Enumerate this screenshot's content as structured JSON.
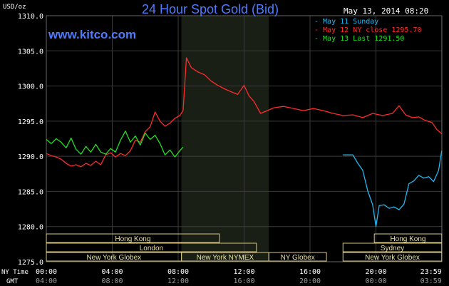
{
  "chart_data": {
    "type": "line",
    "title": "24 Hour Spot Gold (Bid)",
    "date_label": "May 13, 2014 08:20",
    "unit_label": "USD/oz",
    "brand": "www.kitco.com",
    "ylim": [
      1275.0,
      1310.0
    ],
    "y_ticks": [
      "1275.0",
      "1280.0",
      "1285.0",
      "1290.0",
      "1295.0",
      "1300.0",
      "1305.0",
      "1310.0"
    ],
    "x_ticks_ny": [
      "00:00",
      "04:00",
      "08:00",
      "12:00",
      "16:00",
      "20:00",
      "23:59"
    ],
    "x_ticks_gmt": [
      "04:00",
      "08:00",
      "12:00",
      "16:00",
      "20:00",
      "00:00",
      "03:59"
    ],
    "x_axis_labels": {
      "ny": "NY Time",
      "gmt": "GMT"
    },
    "grid": true,
    "legend": [
      {
        "text": "May 11 Sunday",
        "color": "#22b8f0"
      },
      {
        "text": "May 12 NY close 1295.70",
        "color": "#ff2a2a"
      },
      {
        "text": "May 13 Last 1291.50",
        "color": "#20e020"
      }
    ],
    "sessions": [
      {
        "name": "Hong Kong",
        "start": 0.0,
        "end": 10.5,
        "row": 0
      },
      {
        "name": "London",
        "start": 0.0,
        "end": 12.75,
        "row": 1
      },
      {
        "name": "New York Globex",
        "start": 0.0,
        "end": 8.2,
        "row": 2
      },
      {
        "name": "New York NYMEX",
        "start": 8.2,
        "end": 13.5,
        "row": 2
      },
      {
        "name": "NY Globex",
        "start": 13.5,
        "end": 17.0,
        "row": 2
      },
      {
        "name": "Hong Kong",
        "start": 19.9,
        "end": 23.99,
        "row": 0
      },
      {
        "name": "Sydney",
        "start": 18.0,
        "end": 23.99,
        "row": 1
      },
      {
        "name": "New York Globex",
        "start": 18.0,
        "end": 23.99,
        "row": 2
      }
    ],
    "highlight_hours": [
      8.2,
      13.5
    ],
    "series": [
      {
        "name": "May 12",
        "color": "#ff2a2a",
        "x": [
          0.0,
          0.3,
          0.6,
          0.9,
          1.2,
          1.5,
          1.8,
          2.1,
          2.4,
          2.7,
          3.0,
          3.3,
          3.6,
          3.9,
          4.2,
          4.5,
          4.8,
          5.1,
          5.4,
          5.7,
          6.0,
          6.3,
          6.6,
          6.9,
          7.2,
          7.5,
          7.8,
          8.1,
          8.3,
          8.5,
          8.8,
          9.2,
          9.6,
          10.0,
          10.4,
          10.8,
          11.2,
          11.6,
          12.0,
          12.3,
          12.6,
          13.0,
          13.4,
          13.8,
          14.4,
          15.0,
          15.6,
          16.2,
          16.8,
          17.4,
          18.0,
          18.6,
          19.2,
          19.8,
          20.4,
          21.0,
          21.4,
          21.8,
          22.2,
          22.6,
          23.0,
          23.4,
          23.7,
          23.99
        ],
        "values": [
          1290.4,
          1290.1,
          1289.9,
          1289.6,
          1289.0,
          1288.6,
          1288.8,
          1288.5,
          1289.0,
          1288.7,
          1289.3,
          1288.8,
          1290.2,
          1290.5,
          1289.9,
          1290.4,
          1290.1,
          1290.8,
          1292.3,
          1292.0,
          1293.5,
          1294.2,
          1296.3,
          1295.0,
          1294.3,
          1294.7,
          1295.4,
          1295.8,
          1296.5,
          1304.0,
          1302.6,
          1302.0,
          1301.6,
          1300.7,
          1300.1,
          1299.6,
          1299.2,
          1298.8,
          1300.1,
          1298.6,
          1297.8,
          1296.1,
          1296.5,
          1296.9,
          1297.1,
          1296.8,
          1296.5,
          1296.8,
          1296.5,
          1296.1,
          1295.8,
          1295.9,
          1295.5,
          1296.1,
          1295.8,
          1296.1,
          1297.2,
          1295.9,
          1295.5,
          1295.6,
          1295.1,
          1294.8,
          1293.8,
          1293.2
        ]
      },
      {
        "name": "May 13",
        "color": "#20e020",
        "x": [
          0.0,
          0.3,
          0.6,
          0.9,
          1.2,
          1.5,
          1.8,
          2.1,
          2.4,
          2.7,
          3.0,
          3.3,
          3.6,
          3.9,
          4.2,
          4.5,
          4.8,
          5.1,
          5.4,
          5.7,
          6.0,
          6.3,
          6.6,
          6.9,
          7.2,
          7.5,
          7.8,
          8.1,
          8.3
        ],
        "values": [
          1292.4,
          1291.8,
          1292.5,
          1292.0,
          1291.2,
          1292.6,
          1291.0,
          1290.3,
          1291.4,
          1290.6,
          1291.7,
          1290.6,
          1290.3,
          1291.1,
          1290.6,
          1292.3,
          1293.6,
          1292.0,
          1292.9,
          1291.6,
          1293.3,
          1292.4,
          1293.0,
          1291.8,
          1290.2,
          1290.9,
          1289.9,
          1290.8,
          1291.3
        ]
      },
      {
        "name": "May 11",
        "color": "#22b8f0",
        "x": [
          18.0,
          18.3,
          18.6,
          18.9,
          19.2,
          19.5,
          19.8,
          20.0,
          20.2,
          20.5,
          20.8,
          21.1,
          21.4,
          21.7,
          22.0,
          22.3,
          22.6,
          22.9,
          23.2,
          23.5,
          23.8,
          23.99
        ],
        "values": [
          1290.2,
          1290.2,
          1290.2,
          1289.0,
          1288.0,
          1285.1,
          1283.1,
          1280.0,
          1283.0,
          1283.1,
          1282.6,
          1282.8,
          1282.4,
          1283.2,
          1286.1,
          1286.5,
          1287.3,
          1286.9,
          1287.1,
          1286.4,
          1288.0,
          1290.8
        ]
      }
    ]
  }
}
